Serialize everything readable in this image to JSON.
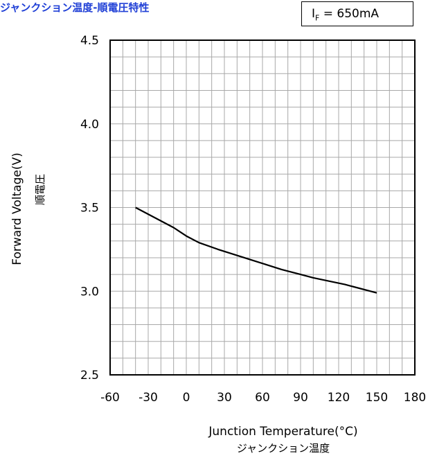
{
  "title": "ジャンクション温度-順電圧特性",
  "condition": {
    "symbol": "I",
    "subscript": "F",
    "rest": " = 650mA"
  },
  "chart_data": {
    "type": "line",
    "xlabel": "Junction Temperature(°C)",
    "xlabel_sub": "ジャンクション温度",
    "ylabel": "Forward Voltage(V)",
    "ylabel_sub": "順電圧",
    "xlim": [
      -60,
      180
    ],
    "ylim": [
      2.5,
      4.5
    ],
    "x_ticks": [
      -60,
      -30,
      0,
      30,
      60,
      90,
      120,
      150,
      180
    ],
    "y_ticks": [
      "2.5",
      "3.0",
      "3.5",
      "4.0",
      "4.5"
    ],
    "x_minor_step": 10,
    "y_minor_step": 0.1,
    "grid": true,
    "series": [
      {
        "x": [
          -40,
          -25,
          -10,
          0,
          10,
          25,
          50,
          75,
          90,
          100,
          125,
          150
        ],
        "y": [
          3.5,
          3.44,
          3.38,
          3.33,
          3.29,
          3.25,
          3.19,
          3.13,
          3.1,
          3.08,
          3.04,
          2.99
        ],
        "color": "#000000"
      }
    ]
  }
}
